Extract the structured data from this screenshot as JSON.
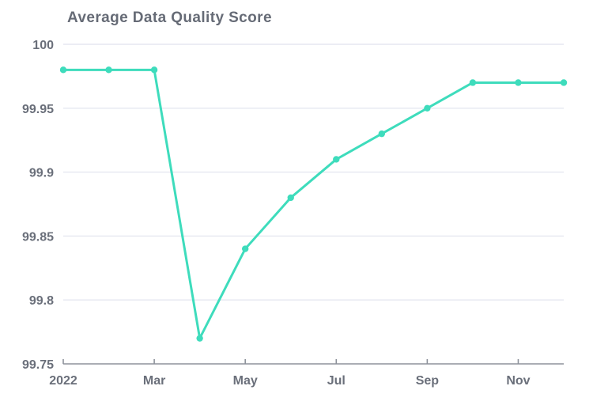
{
  "chart": {
    "title": "Average Data Quality Score"
  },
  "chart_data": {
    "type": "line",
    "title": "Average Data Quality Score",
    "categories": [
      "Jan 2022",
      "Feb 2022",
      "Mar 2022",
      "Apr 2022",
      "May 2022",
      "Jun 2022",
      "Jul 2022",
      "Aug 2022",
      "Sep 2022",
      "Oct 2022",
      "Nov 2022",
      "Dec 2022"
    ],
    "values": [
      99.98,
      99.98,
      99.98,
      99.77,
      99.84,
      99.88,
      99.91,
      99.93,
      99.95,
      99.97,
      99.97,
      99.97
    ],
    "xlabel": "",
    "ylabel": "",
    "ylim": [
      99.75,
      100
    ],
    "yticks": [
      99.75,
      99.8,
      99.85,
      99.9,
      99.95,
      100
    ],
    "ytick_labels": [
      "99.75",
      "99.8",
      "99.85",
      "99.9",
      "99.95",
      "100"
    ],
    "xtick_indices": [
      0,
      2,
      4,
      6,
      8,
      10
    ],
    "xtick_labels": [
      "2022",
      "Mar",
      "May",
      "Jul",
      "Sep",
      "Nov"
    ],
    "grid": true,
    "legend_position": "none",
    "marker": "circle"
  },
  "colors": {
    "series_line": "#3edcbc",
    "marker_fill": "#3edcbc",
    "title_text": "#666b76",
    "tick_label_text": "#6a6f7a",
    "gridline": "#e5e7f0",
    "axis_line": "#8d929b",
    "background": "#ffffff"
  }
}
